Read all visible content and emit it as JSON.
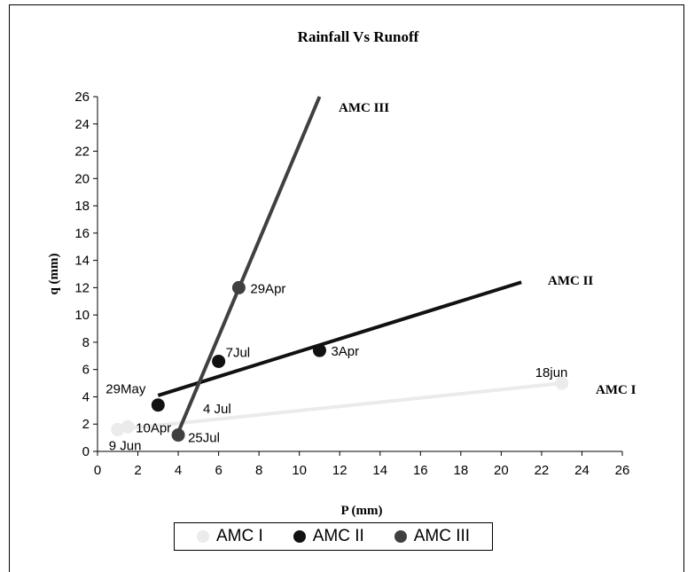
{
  "chart_data": {
    "type": "scatter",
    "title": "Rainfall Vs Runoff",
    "xlabel": "P (mm)",
    "ylabel": "q (mm)",
    "xlim": [
      0,
      26
    ],
    "ylim": [
      0,
      26
    ],
    "xticks": [
      0,
      2,
      4,
      6,
      8,
      10,
      12,
      14,
      16,
      18,
      20,
      22,
      24,
      26
    ],
    "yticks": [
      0,
      2,
      4,
      6,
      8,
      10,
      12,
      14,
      16,
      18,
      20,
      22,
      24,
      26
    ],
    "grid": false,
    "legend_position": "bottom",
    "series": [
      {
        "name": "AMC I",
        "color": "#ebebeb",
        "points": [
          {
            "x": 1.0,
            "y": 1.6,
            "label": "9 Jun"
          },
          {
            "x": 1.5,
            "y": 1.8,
            "label": "10Apr"
          },
          {
            "x": 23.0,
            "y": 5.0,
            "label": "18jun"
          }
        ],
        "trendline": {
          "from": [
            1.0,
            1.6
          ],
          "to": [
            23.0,
            5.0
          ]
        },
        "line_label": "AMC I"
      },
      {
        "name": "AMC II",
        "color": "#111111",
        "points": [
          {
            "x": 3.0,
            "y": 3.4,
            "label": "29May"
          },
          {
            "x": 6.0,
            "y": 6.6,
            "label": "7Jul"
          },
          {
            "x": 11.0,
            "y": 7.4,
            "label": "3Apr"
          }
        ],
        "trendline": {
          "from": [
            3.0,
            4.1
          ],
          "to": [
            21.0,
            12.4
          ]
        },
        "line_label": "AMC II"
      },
      {
        "name": "AMC III",
        "color": "#404040",
        "points": [
          {
            "x": 4.0,
            "y": 1.2,
            "label": "25Jul"
          },
          {
            "x": 7.0,
            "y": 12.0,
            "label": "29Apr"
          }
        ],
        "trendline": {
          "from": [
            4.0,
            1.4
          ],
          "to": [
            11.0,
            26.0
          ]
        },
        "line_label": "AMC III"
      }
    ],
    "annotations": [
      "4 Jul"
    ]
  }
}
